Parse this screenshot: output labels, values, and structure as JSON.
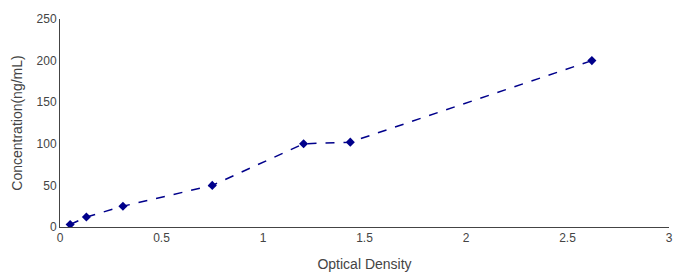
{
  "chart_data": {
    "type": "line",
    "x": [
      0.05,
      0.13,
      0.31,
      0.75,
      1.2,
      1.43,
      2.62
    ],
    "values": [
      3,
      12,
      25,
      50,
      100,
      102,
      200
    ],
    "color": "#00008B",
    "marker": "diamond",
    "line_style": "dashed",
    "xlabel": "Optical Density",
    "ylabel": "Concentration(ng/mL)",
    "xlim": [
      0,
      3
    ],
    "ylim": [
      0,
      250
    ],
    "xticks": [
      0,
      0.5,
      1,
      1.5,
      2,
      2.5,
      3
    ],
    "yticks": [
      0,
      50,
      100,
      150,
      200,
      250
    ],
    "grid": false
  }
}
